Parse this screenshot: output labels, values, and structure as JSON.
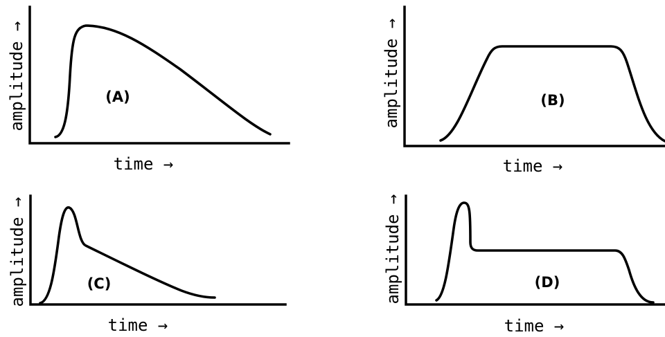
{
  "panels": [
    {
      "id": "A",
      "label": "(A)",
      "ylabel": "amplitude →",
      "xlabel": "time →"
    },
    {
      "id": "B",
      "label": "(B)",
      "ylabel": "amplitude →",
      "xlabel": "time →"
    },
    {
      "id": "C",
      "label": "(C)",
      "ylabel": "amplitude →",
      "xlabel": "time →"
    },
    {
      "id": "D",
      "label": "(D)",
      "ylabel": "amplitude →",
      "xlabel": "time →"
    }
  ]
}
